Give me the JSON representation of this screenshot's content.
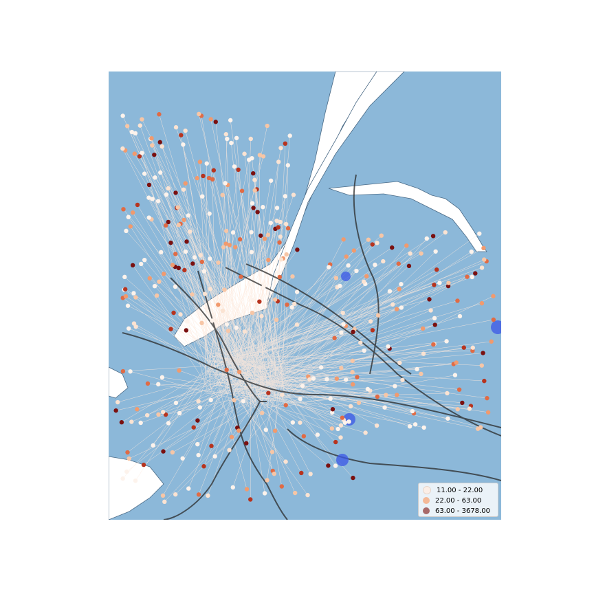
{
  "legend": {
    "items": [
      {
        "label": "11.00 - 22.00",
        "color": "#fbeee6"
      },
      {
        "label": "22.00 - 63.00",
        "color": "#f4b998"
      },
      {
        "label": "63.00 - 3678.00",
        "color": "#a86a6a"
      }
    ]
  },
  "colors": {
    "water": "#8cb8d9",
    "land": "#ffffff",
    "transit_line": "#2a2a2a",
    "flow_line": "#fde9dc",
    "hub": "#3b57e6"
  }
}
